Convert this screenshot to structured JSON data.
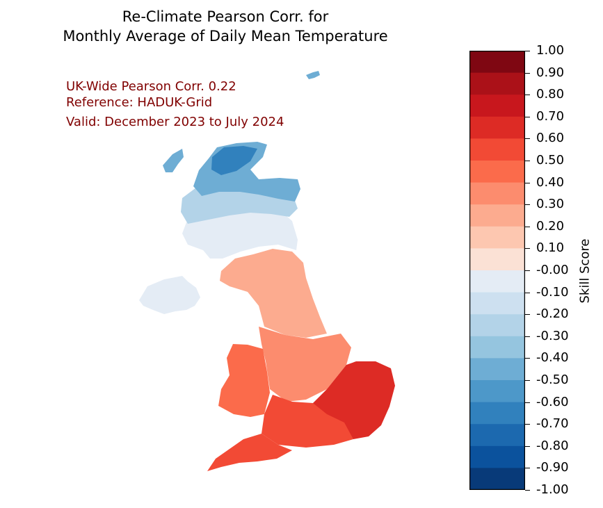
{
  "title_line1": "Re-Climate Pearson Corr. for",
  "title_line2": "Monthly Average of Daily Mean Temperature",
  "annotations": {
    "corr": "UK-Wide Pearson Corr. 0.22",
    "reference": "Reference: HADUK-Grid",
    "valid": "Valid: December 2023 to July 2024"
  },
  "colorbar": {
    "label": "Skill Score",
    "ticks": [
      "1.00",
      "0.90",
      "0.80",
      "0.70",
      "0.60",
      "0.50",
      "0.40",
      "0.30",
      "0.20",
      "0.10",
      "-0.00",
      "-0.10",
      "-0.20",
      "-0.30",
      "-0.40",
      "-0.50",
      "-0.60",
      "-0.70",
      "-0.80",
      "-0.90",
      "-1.00"
    ],
    "colors_top_to_bottom": [
      "#7f0712",
      "#ab1118",
      "#c8171d",
      "#dd2b25",
      "#f24a35",
      "#fb6b4b",
      "#fc8c6e",
      "#fcab8f",
      "#fdc7b0",
      "#fbe1d5",
      "#e4ecf5",
      "#cde0f0",
      "#b3d3e8",
      "#95c5df",
      "#6eadd4",
      "#4d98c9",
      "#3181bd",
      "#1c69af",
      "#0b529d",
      "#083a79"
    ]
  },
  "regions": [
    {
      "name": "scotland-north",
      "color": "#6eadd4"
    },
    {
      "name": "scotland-north-core",
      "color": "#3181bd"
    },
    {
      "name": "scotland-central",
      "color": "#b3d3e8"
    },
    {
      "name": "scotland-south",
      "color": "#e4ecf5"
    },
    {
      "name": "northern-ireland",
      "color": "#e4ecf5"
    },
    {
      "name": "northern-england",
      "color": "#fcab8f"
    },
    {
      "name": "midlands",
      "color": "#fc8c6e"
    },
    {
      "name": "wales",
      "color": "#fb6b4b"
    },
    {
      "name": "south-england",
      "color": "#f24a35"
    },
    {
      "name": "south-east-england",
      "color": "#dd2b25"
    },
    {
      "name": "south-west-england",
      "color": "#f24a35"
    }
  ]
}
